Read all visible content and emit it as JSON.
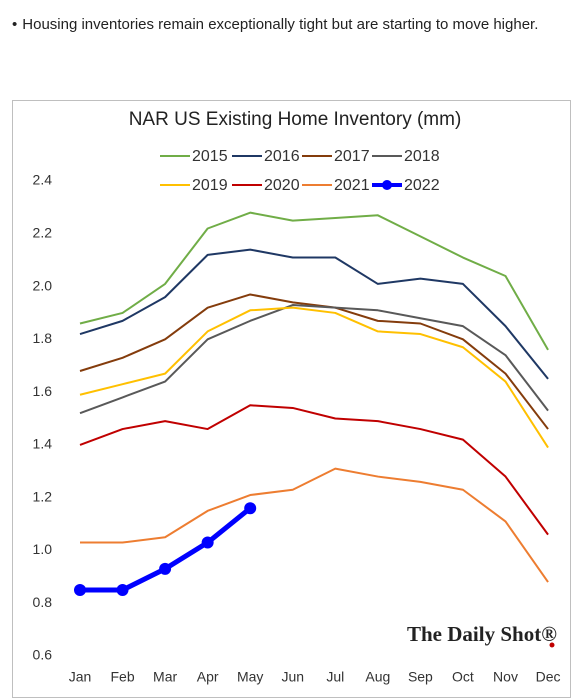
{
  "note": "Housing inventories remain exceptionally tight but are starting to move higher.",
  "watermark": "The Daily Shot®",
  "chart_data": {
    "type": "line",
    "title": "NAR US Existing Home Inventory (mm)",
    "categories": [
      "Jan",
      "Feb",
      "Mar",
      "Apr",
      "May",
      "Jun",
      "Jul",
      "Aug",
      "Sep",
      "Oct",
      "Nov",
      "Dec"
    ],
    "ylim": [
      0.6,
      2.4
    ],
    "yticks": [
      0.6,
      0.8,
      {
        "value": 1.0,
        "label": "1.0"
      },
      1.2,
      1.4,
      1.6,
      1.8,
      {
        "value": 2.0,
        "label": "2.0"
      },
      2.2,
      2.4
    ],
    "grid": false,
    "legend": "top",
    "series": [
      {
        "name": "2015",
        "color": "#70ad47",
        "values": [
          1.86,
          1.9,
          2.01,
          2.22,
          2.28,
          2.25,
          2.26,
          2.27,
          2.19,
          2.11,
          2.04,
          1.76
        ]
      },
      {
        "name": "2016",
        "color": "#1f3864",
        "values": [
          1.82,
          1.87,
          1.96,
          2.12,
          2.14,
          2.11,
          2.11,
          2.01,
          2.03,
          2.01,
          1.85,
          1.65
        ]
      },
      {
        "name": "2017",
        "color": "#843c0c",
        "values": [
          1.68,
          1.73,
          1.8,
          1.92,
          1.97,
          1.94,
          1.92,
          1.87,
          1.86,
          1.8,
          1.67,
          1.46
        ]
      },
      {
        "name": "2018",
        "color": "#595959",
        "values": [
          1.52,
          1.58,
          1.64,
          1.8,
          1.87,
          1.93,
          1.92,
          1.91,
          1.88,
          1.85,
          1.74,
          1.53
        ]
      },
      {
        "name": "2019",
        "color": "#ffc000",
        "values": [
          1.59,
          1.63,
          1.67,
          1.83,
          1.91,
          1.92,
          1.9,
          1.83,
          1.82,
          1.77,
          1.64,
          1.39
        ]
      },
      {
        "name": "2020",
        "color": "#c00000",
        "values": [
          1.4,
          1.46,
          1.49,
          1.46,
          1.55,
          1.54,
          1.5,
          1.49,
          1.46,
          1.42,
          1.28,
          1.06
        ]
      },
      {
        "name": "2021",
        "color": "#ed7d31",
        "values": [
          1.03,
          1.03,
          1.05,
          1.15,
          1.21,
          1.23,
          1.31,
          1.28,
          1.26,
          1.23,
          1.11,
          0.88
        ]
      },
      {
        "name": "2022",
        "color": "#0000ff",
        "markers": true,
        "values": [
          0.85,
          0.85,
          0.93,
          1.03,
          1.16,
          null,
          null,
          null,
          null,
          null,
          null,
          null
        ]
      }
    ]
  }
}
